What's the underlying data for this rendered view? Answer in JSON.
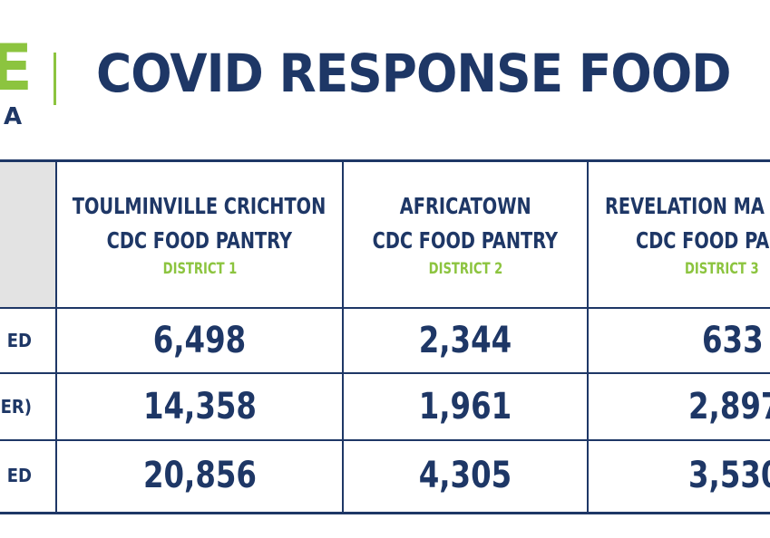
{
  "header": {
    "logo_letter": "E",
    "logo_sub": "A",
    "title": "COVID RESPONSE FOOD"
  },
  "table": {
    "columns": [
      {
        "name_line1": "TOULMINVILLE CRICHTON",
        "name_line2": "CDC FOOD PANTRY",
        "district": "DISTRICT 1"
      },
      {
        "name_line1": "AFRICATOWN",
        "name_line2": "CDC FOOD PANTRY",
        "district": "DISTRICT 2"
      },
      {
        "name_line1": "REVELATION MA",
        "name_line2": "CDC FOOD PA",
        "district": "DISTRICT 3"
      }
    ],
    "rows": [
      {
        "label": "ED",
        "values": [
          "6,498",
          "2,344",
          "633"
        ]
      },
      {
        "label": "ER)",
        "values": [
          "14,358",
          "1,961",
          "2,897"
        ]
      },
      {
        "label": "ED",
        "values": [
          "20,856",
          "4,305",
          "3,530"
        ]
      }
    ]
  },
  "colors": {
    "navy": "#1e3766",
    "green": "#8cc43f",
    "corner_gray": "#e3e3e3"
  }
}
